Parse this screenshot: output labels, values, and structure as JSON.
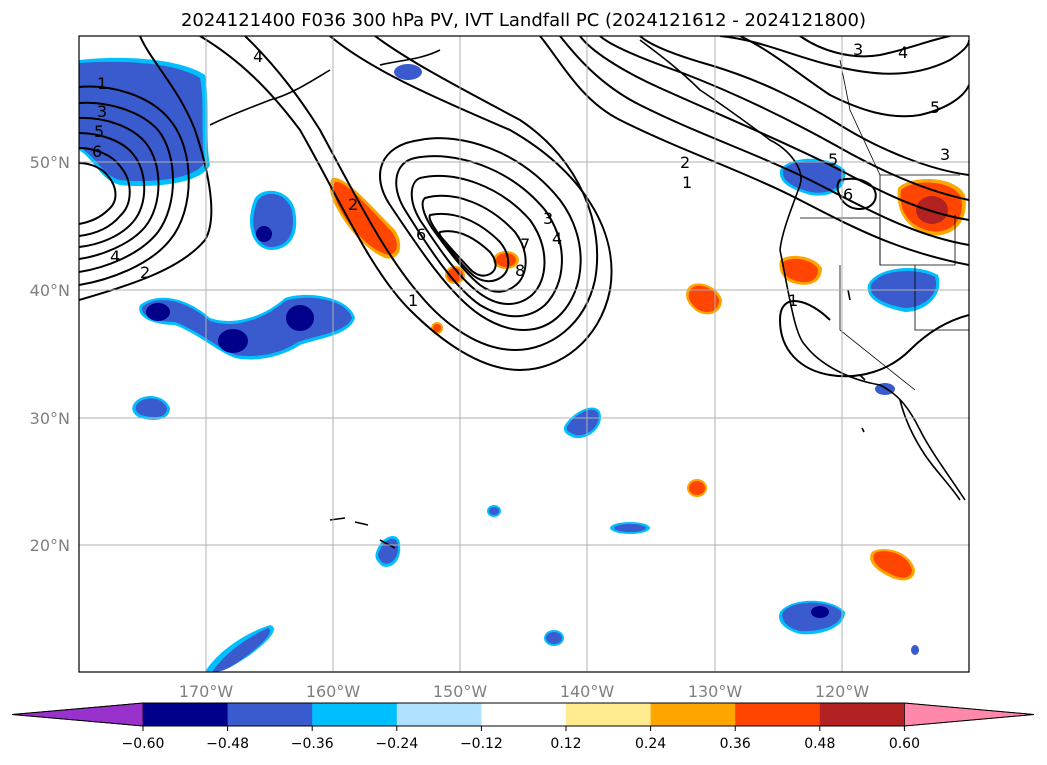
{
  "title": "2024121400 F036 300 hPa PV, IVT Landfall PC (2024121612 - 2024121800)",
  "lat_labels": [
    "50°N",
    "40°N",
    "30°N",
    "20°N"
  ],
  "lon_labels": [
    "170°W",
    "160°W",
    "150°W",
    "140°W",
    "130°W",
    "120°W"
  ],
  "colorbar": {
    "tick_labels": [
      "−0.60",
      "−0.48",
      "−0.36",
      "−0.24",
      "−0.12",
      "0.12",
      "0.24",
      "0.36",
      "0.48",
      "0.60"
    ],
    "colors": [
      "#9932cc",
      "#00008b",
      "#3a5bcd",
      "#00bfff",
      "#b0e2ff",
      "#ffffff",
      "#ffeb8f",
      "#ffa500",
      "#ff4500",
      "#b22222",
      "#ff88aa"
    ]
  },
  "contour_labels": [
    "1",
    "3",
    "5",
    "6",
    "4",
    "2",
    "4",
    "2",
    "6",
    "7",
    "8",
    "3",
    "4",
    "1",
    "3",
    "4",
    "5",
    "3",
    "5",
    "2",
    "1",
    "6",
    "1"
  ]
}
